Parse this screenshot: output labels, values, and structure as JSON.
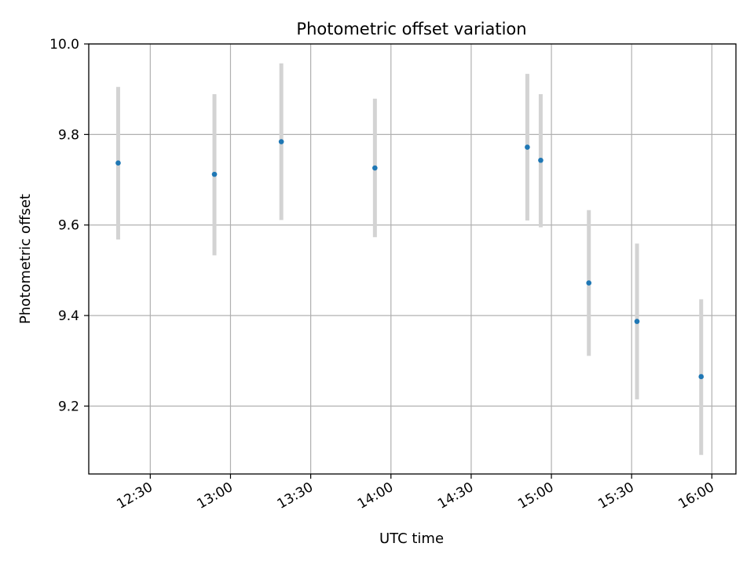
{
  "chart_data": {
    "type": "scatter",
    "title": "Photometric offset variation",
    "xlabel": "UTC time",
    "ylabel": "Photometric offset",
    "x_axis_type": "time",
    "xlim": [
      "12:07",
      "16:09"
    ],
    "ylim": [
      9.05,
      10.0
    ],
    "x_ticks": [
      "12:30",
      "13:00",
      "13:30",
      "14:00",
      "14:30",
      "15:00",
      "15:30",
      "16:00"
    ],
    "y_ticks": [
      9.2,
      9.4,
      9.6,
      9.8,
      10.0
    ],
    "y_tick_labels": [
      "9.2",
      "9.4",
      "9.6",
      "9.8",
      "10.0"
    ],
    "grid": true,
    "colors": {
      "points": "#1f77b4",
      "error_bars": "#d3d3d3",
      "grid": "#b0b0b0",
      "axes": "#000000"
    },
    "points": [
      {
        "x": "12:18",
        "y": 9.737,
        "err_low": 9.568,
        "err_high": 9.905
      },
      {
        "x": "12:54",
        "y": 9.712,
        "err_low": 9.533,
        "err_high": 9.889
      },
      {
        "x": "13:19",
        "y": 9.784,
        "err_low": 9.611,
        "err_high": 9.957
      },
      {
        "x": "13:54",
        "y": 9.726,
        "err_low": 9.573,
        "err_high": 9.879
      },
      {
        "x": "14:51",
        "y": 9.772,
        "err_low": 9.61,
        "err_high": 9.934
      },
      {
        "x": "14:56",
        "y": 9.743,
        "err_low": 9.595,
        "err_high": 9.889
      },
      {
        "x": "15:14",
        "y": 9.472,
        "err_low": 9.311,
        "err_high": 9.633
      },
      {
        "x": "15:32",
        "y": 9.387,
        "err_low": 9.215,
        "err_high": 9.559
      },
      {
        "x": "15:56",
        "y": 9.265,
        "err_low": 9.092,
        "err_high": 9.436
      }
    ]
  }
}
